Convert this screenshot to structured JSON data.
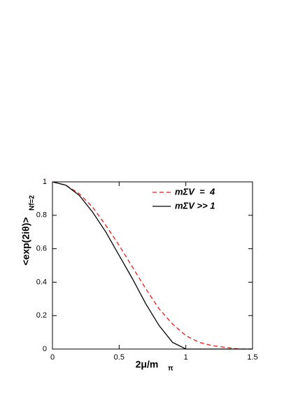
{
  "chart_data": {
    "type": "line",
    "xlabel": "2μ/m",
    "xlabel_sub": "π",
    "ylabel": "<exp(2iθ)>",
    "ylabel_sub": "Nf=2",
    "x": [
      0,
      0.1,
      0.2,
      0.3,
      0.4,
      0.5,
      0.6,
      0.7,
      0.8,
      0.9,
      1.0,
      1.1,
      1.2,
      1.3,
      1.4,
      1.5
    ],
    "series": [
      {
        "name": "mΣV  =  4",
        "color": "#e41a1c",
        "dash": true,
        "values": [
          1,
          0.98,
          0.93,
          0.85,
          0.74,
          0.62,
          0.49,
          0.36,
          0.24,
          0.15,
          0.08,
          0.04,
          0.02,
          0.01,
          0,
          0
        ]
      },
      {
        "name": "mΣV >> 1",
        "color": "#000000",
        "dash": false,
        "values": [
          1,
          0.98,
          0.92,
          0.82,
          0.7,
          0.56,
          0.42,
          0.27,
          0.14,
          0.04,
          0,
          0,
          0,
          0,
          0,
          0
        ]
      }
    ],
    "xlim": [
      0,
      1.5
    ],
    "xticks": [
      0,
      0.5,
      1,
      1.5
    ],
    "ylim": [
      0,
      1
    ],
    "yticks": [
      0,
      0.2,
      0.4,
      0.6,
      0.8,
      1
    ],
    "legend": "upper right"
  }
}
